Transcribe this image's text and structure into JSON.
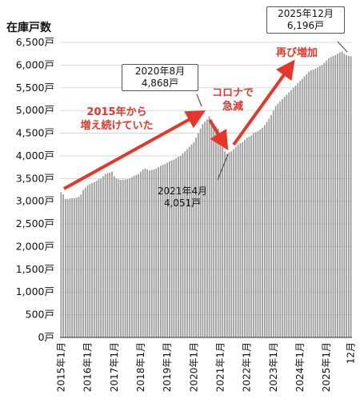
{
  "chart_data": {
    "type": "bar",
    "ylabel": "在庫戸数",
    "ylim": [
      0,
      6500
    ],
    "y_ticks": [
      0,
      500,
      1000,
      1500,
      2000,
      2500,
      3000,
      3500,
      4000,
      4500,
      5000,
      5500,
      6000,
      6500
    ],
    "y_tick_labels": [
      "0戸",
      "500戸",
      "1,000戸",
      "1,500戸",
      "2,000戸",
      "2,500戸",
      "3,000戸",
      "3,500戸",
      "4,000戸",
      "4,500戸",
      "5,000戸",
      "5,500戸",
      "6,000戸",
      "6,500戸"
    ],
    "x_tick_labels": [
      "2015年1月",
      "2016年1月",
      "2017年1月",
      "2018年1月",
      "2019年1月",
      "2020年1月",
      "2021年1月",
      "2022年1月",
      "2023年1月",
      "2024年1月",
      "2025年1月",
      "12月"
    ],
    "x_tick_indices": [
      0,
      12,
      24,
      36,
      48,
      60,
      72,
      84,
      96,
      108,
      120,
      131
    ],
    "categories_description": "2015年1月〜2025年12月 (monthly)",
    "values": [
      3200,
      3150,
      3050,
      3050,
      3060,
      3070,
      3070,
      3080,
      3100,
      3150,
      3250,
      3300,
      3350,
      3380,
      3400,
      3420,
      3450,
      3480,
      3500,
      3550,
      3600,
      3620,
      3630,
      3650,
      3550,
      3500,
      3480,
      3470,
      3470,
      3480,
      3490,
      3500,
      3530,
      3560,
      3580,
      3600,
      3650,
      3700,
      3720,
      3700,
      3680,
      3690,
      3700,
      3720,
      3750,
      3780,
      3800,
      3820,
      3850,
      3880,
      3900,
      3920,
      3950,
      3980,
      4000,
      4050,
      4100,
      4150,
      4200,
      4250,
      4300,
      4400,
      4500,
      4600,
      4700,
      4750,
      4800,
      4868,
      4800,
      4700,
      4650,
      4600,
      4400,
      4200,
      4100,
      4051,
      4080,
      4100,
      4150,
      4200,
      4250,
      4280,
      4300,
      4350,
      4400,
      4420,
      4450,
      4500,
      4520,
      4550,
      4580,
      4620,
      4680,
      4750,
      4820,
      4900,
      5000,
      5100,
      5150,
      5200,
      5250,
      5300,
      5350,
      5400,
      5450,
      5500,
      5550,
      5600,
      5650,
      5700,
      5750,
      5800,
      5850,
      5880,
      5900,
      5920,
      5950,
      5980,
      6000,
      6050,
      6100,
      6150,
      6180,
      6200,
      6220,
      6250,
      6280,
      6300,
      6250,
      6220,
      6200,
      6196
    ],
    "bar_color": "#9b9b9b",
    "grid": true
  },
  "callouts": {
    "c2020_line1": "2020年8月",
    "c2020_line2": "4,868戸",
    "c2021_line1": "2021年4月",
    "c2021_line2": "4,051戸",
    "c2025_line1": "2025年12月",
    "c2025_line2": "6,196戸"
  },
  "annotations": {
    "rise_line1": "2015年から",
    "rise_line2": "増え続けていた",
    "drop_line1": "コロナで",
    "drop_line2": "急減",
    "again": "再び増加"
  },
  "colors": {
    "accent_red": "#e8352a",
    "bar": "#9b9b9b",
    "grid": "#cfcfcf"
  }
}
